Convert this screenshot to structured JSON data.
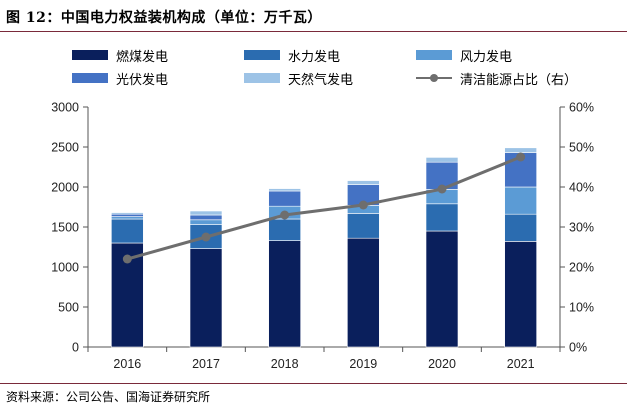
{
  "title": "图 12：中国电力权益装机构成（单位：万千瓦）",
  "source": "资料来源：公司公告、国海证券研究所",
  "chart_data": {
    "type": "bar",
    "stacked": true,
    "categories": [
      "2016",
      "2017",
      "2018",
      "2019",
      "2020",
      "2021"
    ],
    "series": [
      {
        "name": "燃煤发电",
        "color": "#0a1f5c",
        "values": [
          1300,
          1230,
          1330,
          1360,
          1450,
          1320
        ]
      },
      {
        "name": "水力发电",
        "color": "#2b6cb0",
        "values": [
          300,
          300,
          270,
          310,
          340,
          340
        ]
      },
      {
        "name": "风力发电",
        "color": "#5b9bd5",
        "values": [
          30,
          60,
          160,
          100,
          180,
          340
        ]
      },
      {
        "name": "光伏发电",
        "color": "#4472c4",
        "values": [
          30,
          60,
          190,
          260,
          340,
          430
        ]
      },
      {
        "name": "天然气发电",
        "color": "#9dc3e6",
        "values": [
          20,
          50,
          30,
          50,
          60,
          60
        ]
      }
    ],
    "line_series": {
      "name": "清洁能源占比（右）",
      "color": "#6e6e6e",
      "values": [
        0.22,
        0.275,
        0.33,
        0.355,
        0.395,
        0.475
      ]
    },
    "ylim": [
      0,
      3000
    ],
    "yticks": [
      0,
      500,
      1000,
      1500,
      2000,
      2500,
      3000
    ],
    "y2lim": [
      0,
      0.6
    ],
    "y2ticks": [
      "0%",
      "10%",
      "20%",
      "30%",
      "40%",
      "50%",
      "60%"
    ],
    "grid": false,
    "legend_position": "top"
  }
}
